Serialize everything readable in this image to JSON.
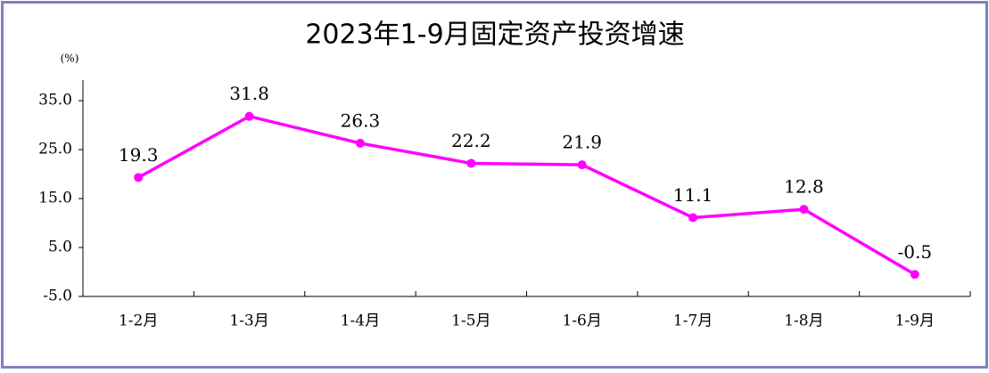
{
  "chart_data": {
    "type": "line",
    "title": "2023年1-9月固定资产投资增速",
    "y_unit": "(%)",
    "categories": [
      "1-2月",
      "1-3月",
      "1-4月",
      "1-5月",
      "1-6月",
      "1-7月",
      "1-8月",
      "1-9月"
    ],
    "series": [
      {
        "name": "固定资产投资增速",
        "color": "#ff00ff",
        "values": [
          19.3,
          31.8,
          26.3,
          22.2,
          21.9,
          11.1,
          12.8,
          -0.5
        ]
      }
    ],
    "ylim": [
      -5,
      39.2
    ],
    "yticks": [
      {
        "value": -5,
        "label": "-5.0"
      },
      {
        "value": 5,
        "label": "5.0"
      },
      {
        "value": 15,
        "label": "15.0"
      },
      {
        "value": 25,
        "label": "25.0"
      },
      {
        "value": 35,
        "label": "35.0"
      }
    ],
    "grid": false
  }
}
